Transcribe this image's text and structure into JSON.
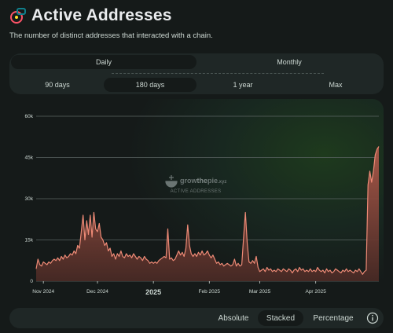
{
  "header": {
    "title": "Active Addresses",
    "subtitle": "The number of distinct addresses that interacted with a chain.",
    "icon": "active-addresses-icon"
  },
  "intervals": [
    {
      "label": "Daily",
      "active": true
    },
    {
      "label": "Monthly",
      "active": false
    }
  ],
  "ranges": [
    {
      "label": "90 days",
      "active": false
    },
    {
      "label": "180 days",
      "active": true
    },
    {
      "label": "1 year",
      "active": false
    },
    {
      "label": "Max",
      "active": false
    }
  ],
  "watermark": {
    "brand_prefix": "grow",
    "brand_accent": "the",
    "brand_suffix": "pie",
    "domain": ".xyz",
    "caption": "ACTIVE ADDRESSES"
  },
  "display_modes": [
    {
      "label": "Absolute",
      "active": false
    },
    {
      "label": "Stacked",
      "active": true
    },
    {
      "label": "Percentage",
      "active": false
    }
  ],
  "colors": {
    "series_line": "#ee8a76",
    "series_fill_top": "#b05a4b",
    "series_fill_bottom": "#4a2a25",
    "grid": "#5b6563",
    "background": "#151a19",
    "panel": "#1f2726"
  },
  "chart_data": {
    "type": "area",
    "title": "",
    "xlabel": "",
    "ylabel": "",
    "ylim": [
      0,
      60000
    ],
    "yticks": [
      0,
      15000,
      30000,
      45000,
      60000
    ],
    "ytick_labels": [
      "0",
      "15k",
      "30k",
      "45k",
      "60k"
    ],
    "grid": true,
    "x_range": [
      "2024-10-28",
      "2025-05-06"
    ],
    "xticks": [
      {
        "date": "2024-11-01",
        "label": "Nov 2024",
        "bold": false
      },
      {
        "date": "2024-12-01",
        "label": "Dec 2024",
        "bold": false
      },
      {
        "date": "2025-01-01",
        "label": "2025",
        "bold": true
      },
      {
        "date": "2025-02-01",
        "label": "Feb 2025",
        "bold": false
      },
      {
        "date": "2025-03-01",
        "label": "Mar 2025",
        "bold": false
      },
      {
        "date": "2025-04-01",
        "label": "Apr 2025",
        "bold": false
      }
    ],
    "series": [
      {
        "name": "",
        "points": [
          [
            "2024-10-28",
            4500
          ],
          [
            "2024-10-29",
            8000
          ],
          [
            "2024-10-30",
            6000
          ],
          [
            "2024-10-31",
            5500
          ],
          [
            "2024-11-01",
            7000
          ],
          [
            "2024-11-02",
            6500
          ],
          [
            "2024-11-03",
            6000
          ],
          [
            "2024-11-04",
            7000
          ],
          [
            "2024-11-05",
            6500
          ],
          [
            "2024-11-06",
            7500
          ],
          [
            "2024-11-07",
            8000
          ],
          [
            "2024-11-08",
            7500
          ],
          [
            "2024-11-09",
            8500
          ],
          [
            "2024-11-10",
            7500
          ],
          [
            "2024-11-11",
            9000
          ],
          [
            "2024-11-12",
            8000
          ],
          [
            "2024-11-13",
            9500
          ],
          [
            "2024-11-14",
            8500
          ],
          [
            "2024-11-15",
            9000
          ],
          [
            "2024-11-16",
            10000
          ],
          [
            "2024-11-17",
            9500
          ],
          [
            "2024-11-18",
            11000
          ],
          [
            "2024-11-19",
            10000
          ],
          [
            "2024-11-20",
            13000
          ],
          [
            "2024-11-21",
            12000
          ],
          [
            "2024-11-22",
            18000
          ],
          [
            "2024-11-23",
            24000
          ],
          [
            "2024-11-24",
            15000
          ],
          [
            "2024-11-25",
            22000
          ],
          [
            "2024-11-26",
            17000
          ],
          [
            "2024-11-27",
            24000
          ],
          [
            "2024-11-28",
            16000
          ],
          [
            "2024-11-29",
            25000
          ],
          [
            "2024-11-30",
            19000
          ],
          [
            "2024-12-01",
            18000
          ],
          [
            "2024-12-02",
            21000
          ],
          [
            "2024-12-03",
            16000
          ],
          [
            "2024-12-04",
            15000
          ],
          [
            "2024-12-05",
            13000
          ],
          [
            "2024-12-06",
            14000
          ],
          [
            "2024-12-07",
            11000
          ],
          [
            "2024-12-08",
            12000
          ],
          [
            "2024-12-09",
            9000
          ],
          [
            "2024-12-10",
            10000
          ],
          [
            "2024-12-11",
            8000
          ],
          [
            "2024-12-12",
            10000
          ],
          [
            "2024-12-13",
            9000
          ],
          [
            "2024-12-14",
            11000
          ],
          [
            "2024-12-15",
            9000
          ],
          [
            "2024-12-16",
            8500
          ],
          [
            "2024-12-17",
            10000
          ],
          [
            "2024-12-18",
            9000
          ],
          [
            "2024-12-19",
            9500
          ],
          [
            "2024-12-20",
            8500
          ],
          [
            "2024-12-21",
            10000
          ],
          [
            "2024-12-22",
            9000
          ],
          [
            "2024-12-23",
            8000
          ],
          [
            "2024-12-24",
            9000
          ],
          [
            "2024-12-25",
            8500
          ],
          [
            "2024-12-26",
            7500
          ],
          [
            "2024-12-27",
            9000
          ],
          [
            "2024-12-28",
            8000
          ],
          [
            "2024-12-29",
            7500
          ],
          [
            "2024-12-30",
            6500
          ],
          [
            "2024-12-31",
            7000
          ],
          [
            "2025-01-01",
            6500
          ],
          [
            "2025-01-02",
            7000
          ],
          [
            "2025-01-03",
            6500
          ],
          [
            "2025-01-04",
            7500
          ],
          [
            "2025-01-05",
            8000
          ],
          [
            "2025-01-06",
            8500
          ],
          [
            "2025-01-07",
            9000
          ],
          [
            "2025-01-08",
            8500
          ],
          [
            "2025-01-09",
            19000
          ],
          [
            "2025-01-10",
            8000
          ],
          [
            "2025-01-11",
            8500
          ],
          [
            "2025-01-12",
            7500
          ],
          [
            "2025-01-13",
            8000
          ],
          [
            "2025-01-14",
            9500
          ],
          [
            "2025-01-15",
            11000
          ],
          [
            "2025-01-16",
            9500
          ],
          [
            "2025-01-17",
            10500
          ],
          [
            "2025-01-18",
            9000
          ],
          [
            "2025-01-19",
            12000
          ],
          [
            "2025-01-20",
            20500
          ],
          [
            "2025-01-21",
            13000
          ],
          [
            "2025-01-22",
            10000
          ],
          [
            "2025-01-23",
            9000
          ],
          [
            "2025-01-24",
            10000
          ],
          [
            "2025-01-25",
            9000
          ],
          [
            "2025-01-26",
            10500
          ],
          [
            "2025-01-27",
            9500
          ],
          [
            "2025-01-28",
            11000
          ],
          [
            "2025-01-29",
            9500
          ],
          [
            "2025-01-30",
            10000
          ],
          [
            "2025-01-31",
            11000
          ],
          [
            "2025-02-01",
            9500
          ],
          [
            "2025-02-02",
            8500
          ],
          [
            "2025-02-03",
            9500
          ],
          [
            "2025-02-04",
            8000
          ],
          [
            "2025-02-05",
            6500
          ],
          [
            "2025-02-06",
            7000
          ],
          [
            "2025-02-07",
            6000
          ],
          [
            "2025-02-08",
            6500
          ],
          [
            "2025-02-09",
            5500
          ],
          [
            "2025-02-10",
            6000
          ],
          [
            "2025-02-11",
            6500
          ],
          [
            "2025-02-12",
            6000
          ],
          [
            "2025-02-13",
            5500
          ],
          [
            "2025-02-14",
            6000
          ],
          [
            "2025-02-15",
            8000
          ],
          [
            "2025-02-16",
            5500
          ],
          [
            "2025-02-17",
            6500
          ],
          [
            "2025-02-18",
            5500
          ],
          [
            "2025-02-19",
            6000
          ],
          [
            "2025-02-20",
            16000
          ],
          [
            "2025-02-21",
            25000
          ],
          [
            "2025-02-22",
            14000
          ],
          [
            "2025-02-23",
            7000
          ],
          [
            "2025-02-24",
            6500
          ],
          [
            "2025-02-25",
            7500
          ],
          [
            "2025-02-26",
            6500
          ],
          [
            "2025-02-27",
            9000
          ],
          [
            "2025-02-28",
            5000
          ],
          [
            "2025-03-01",
            3500
          ],
          [
            "2025-03-02",
            4000
          ],
          [
            "2025-03-03",
            4500
          ],
          [
            "2025-03-04",
            3500
          ],
          [
            "2025-03-05",
            5000
          ],
          [
            "2025-03-06",
            4000
          ],
          [
            "2025-03-07",
            4500
          ],
          [
            "2025-03-08",
            3500
          ],
          [
            "2025-03-09",
            4000
          ],
          [
            "2025-03-10",
            3500
          ],
          [
            "2025-03-11",
            4500
          ],
          [
            "2025-03-12",
            4000
          ],
          [
            "2025-03-13",
            3500
          ],
          [
            "2025-03-14",
            4500
          ],
          [
            "2025-03-15",
            4000
          ],
          [
            "2025-03-16",
            3500
          ],
          [
            "2025-03-17",
            4500
          ],
          [
            "2025-03-18",
            4000
          ],
          [
            "2025-03-19",
            3000
          ],
          [
            "2025-03-20",
            4000
          ],
          [
            "2025-03-21",
            4500
          ],
          [
            "2025-03-22",
            3500
          ],
          [
            "2025-03-23",
            5000
          ],
          [
            "2025-03-24",
            4000
          ],
          [
            "2025-03-25",
            4500
          ],
          [
            "2025-03-26",
            3500
          ],
          [
            "2025-03-27",
            4000
          ],
          [
            "2025-03-28",
            3500
          ],
          [
            "2025-03-29",
            4500
          ],
          [
            "2025-03-30",
            3500
          ],
          [
            "2025-03-31",
            4000
          ],
          [
            "2025-04-01",
            3500
          ],
          [
            "2025-04-02",
            5000
          ],
          [
            "2025-04-03",
            4000
          ],
          [
            "2025-04-04",
            3500
          ],
          [
            "2025-04-05",
            4000
          ],
          [
            "2025-04-06",
            3000
          ],
          [
            "2025-04-07",
            4500
          ],
          [
            "2025-04-08",
            3500
          ],
          [
            "2025-04-09",
            4000
          ],
          [
            "2025-04-10",
            3000
          ],
          [
            "2025-04-11",
            3500
          ],
          [
            "2025-04-12",
            4500
          ],
          [
            "2025-04-13",
            4000
          ],
          [
            "2025-04-14",
            3500
          ],
          [
            "2025-04-15",
            3000
          ],
          [
            "2025-04-16",
            4000
          ],
          [
            "2025-04-17",
            3500
          ],
          [
            "2025-04-18",
            4500
          ],
          [
            "2025-04-19",
            3500
          ],
          [
            "2025-04-20",
            4000
          ],
          [
            "2025-04-21",
            3500
          ],
          [
            "2025-04-22",
            3000
          ],
          [
            "2025-04-23",
            4000
          ],
          [
            "2025-04-24",
            3500
          ],
          [
            "2025-04-25",
            4500
          ],
          [
            "2025-04-26",
            3500
          ],
          [
            "2025-04-27",
            2500
          ],
          [
            "2025-04-28",
            3500
          ],
          [
            "2025-04-29",
            4000
          ],
          [
            "2025-04-30",
            35000
          ],
          [
            "2025-05-01",
            40000
          ],
          [
            "2025-05-02",
            36000
          ],
          [
            "2025-05-03",
            40000
          ],
          [
            "2025-05-04",
            46000
          ],
          [
            "2025-05-05",
            48000
          ],
          [
            "2025-05-06",
            49000
          ]
        ]
      }
    ]
  }
}
